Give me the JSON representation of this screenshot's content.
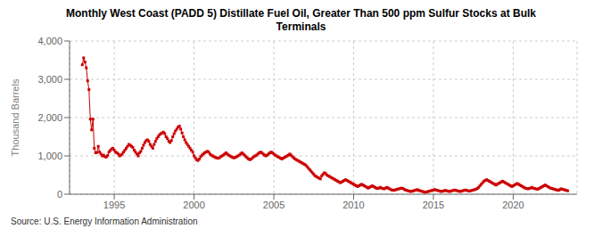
{
  "chart_data": {
    "type": "line",
    "title": "Monthly West Coast (PADD 5) Distillate Fuel Oil, Greater Than 500 ppm Sulfur Stocks at Bulk\nTerminals",
    "y_label": "Thousand Barrels",
    "annotations": [
      "Source: U.S. Energy Information Administration"
    ],
    "color": "#cc0000",
    "marker": "square",
    "grid": true,
    "xlim": [
      1992.2,
      2024.0
    ],
    "xticks": [
      1995,
      2000,
      2005,
      2010,
      2015,
      2020
    ],
    "ylim": [
      0,
      4000
    ],
    "yticks": [
      0,
      {
        "value": 1000,
        "label": "1,000"
      },
      {
        "value": 2000,
        "label": "2,000"
      },
      {
        "value": 3000,
        "label": "3,000"
      },
      {
        "value": 4000,
        "label": "4,000"
      }
    ],
    "x": [
      1993.0,
      1993.083,
      1993.167,
      1993.25,
      1993.333,
      1993.417,
      1993.5,
      1993.583,
      1993.667,
      1993.75,
      1993.833,
      1993.917,
      1994.0,
      1994.083,
      1994.167,
      1994.25,
      1994.333,
      1994.417,
      1994.5,
      1994.583,
      1994.667,
      1994.75,
      1994.833,
      1994.917,
      1995.0,
      1995.083,
      1995.167,
      1995.25,
      1995.333,
      1995.417,
      1995.5,
      1995.583,
      1995.667,
      1995.75,
      1995.833,
      1995.917,
      1996.0,
      1996.083,
      1996.167,
      1996.25,
      1996.333,
      1996.417,
      1996.5,
      1996.583,
      1996.667,
      1996.75,
      1996.833,
      1996.917,
      1997.0,
      1997.083,
      1997.167,
      1997.25,
      1997.333,
      1997.417,
      1997.5,
      1997.583,
      1997.667,
      1997.75,
      1997.833,
      1997.917,
      1998.0,
      1998.083,
      1998.167,
      1998.25,
      1998.333,
      1998.417,
      1998.5,
      1998.583,
      1998.667,
      1998.75,
      1998.833,
      1998.917,
      1999.0,
      1999.083,
      1999.167,
      1999.25,
      1999.333,
      1999.417,
      1999.5,
      1999.583,
      1999.667,
      1999.75,
      1999.833,
      1999.917,
      2000.0,
      2000.083,
      2000.167,
      2000.25,
      2000.333,
      2000.417,
      2000.5,
      2000.583,
      2000.667,
      2000.75,
      2000.833,
      2000.917,
      2001.0,
      2001.083,
      2001.167,
      2001.25,
      2001.333,
      2001.417,
      2001.5,
      2001.583,
      2001.667,
      2001.75,
      2001.833,
      2001.917,
      2002.0,
      2002.083,
      2002.167,
      2002.25,
      2002.333,
      2002.417,
      2002.5,
      2002.583,
      2002.667,
      2002.75,
      2002.833,
      2002.917,
      2003.0,
      2003.083,
      2003.167,
      2003.25,
      2003.333,
      2003.417,
      2003.5,
      2003.583,
      2003.667,
      2003.75,
      2003.833,
      2003.917,
      2004.0,
      2004.083,
      2004.167,
      2004.25,
      2004.333,
      2004.417,
      2004.5,
      2004.583,
      2004.667,
      2004.75,
      2004.833,
      2004.917,
      2005.0,
      2005.083,
      2005.167,
      2005.25,
      2005.333,
      2005.417,
      2005.5,
      2005.583,
      2005.667,
      2005.75,
      2005.833,
      2005.917,
      2006.0,
      2006.083,
      2006.167,
      2006.25,
      2006.333,
      2006.417,
      2006.5,
      2006.583,
      2006.667,
      2006.75,
      2006.833,
      2006.917,
      2007.0,
      2007.083,
      2007.167,
      2007.25,
      2007.333,
      2007.417,
      2007.5,
      2007.583,
      2007.667,
      2007.75,
      2007.833,
      2007.917,
      2008.0,
      2008.083,
      2008.167,
      2008.25,
      2008.333,
      2008.417,
      2008.5,
      2008.583,
      2008.667,
      2008.75,
      2008.833,
      2008.917,
      2009.0,
      2009.083,
      2009.167,
      2009.25,
      2009.333,
      2009.417,
      2009.5,
      2009.583,
      2009.667,
      2009.75,
      2009.833,
      2009.917,
      2010.0,
      2010.083,
      2010.167,
      2010.25,
      2010.333,
      2010.417,
      2010.5,
      2010.583,
      2010.667,
      2010.75,
      2010.833,
      2010.917,
      2011.0,
      2011.083,
      2011.167,
      2011.25,
      2011.333,
      2011.417,
      2011.5,
      2011.583,
      2011.667,
      2011.75,
      2011.833,
      2011.917,
      2012.0,
      2012.083,
      2012.167,
      2012.25,
      2012.333,
      2012.417,
      2012.5,
      2012.583,
      2012.667,
      2012.75,
      2012.833,
      2012.917,
      2013.0,
      2013.083,
      2013.167,
      2013.25,
      2013.333,
      2013.417,
      2013.5,
      2013.583,
      2013.667,
      2013.75,
      2013.833,
      2013.917,
      2014.0,
      2014.083,
      2014.167,
      2014.25,
      2014.333,
      2014.417,
      2014.5,
      2014.583,
      2014.667,
      2014.75,
      2014.833,
      2014.917,
      2015.0,
      2015.083,
      2015.167,
      2015.25,
      2015.333,
      2015.417,
      2015.5,
      2015.583,
      2015.667,
      2015.75,
      2015.833,
      2015.917,
      2016.0,
      2016.083,
      2016.167,
      2016.25,
      2016.333,
      2016.417,
      2016.5,
      2016.583,
      2016.667,
      2016.75,
      2016.833,
      2016.917,
      2017.0,
      2017.083,
      2017.167,
      2017.25,
      2017.333,
      2017.417,
      2017.5,
      2017.583,
      2017.667,
      2017.75,
      2017.833,
      2017.917,
      2018.0,
      2018.083,
      2018.167,
      2018.25,
      2018.333,
      2018.417,
      2018.5,
      2018.583,
      2018.667,
      2018.75,
      2018.833,
      2018.917,
      2019.0,
      2019.083,
      2019.167,
      2019.25,
      2019.333,
      2019.417,
      2019.5,
      2019.583,
      2019.667,
      2019.75,
      2019.833,
      2019.917,
      2020.0,
      2020.083,
      2020.167,
      2020.25,
      2020.333,
      2020.417,
      2020.5,
      2020.583,
      2020.667,
      2020.75,
      2020.833,
      2020.917,
      2021.0,
      2021.083,
      2021.167,
      2021.25,
      2021.333,
      2021.417,
      2021.5,
      2021.583,
      2021.667,
      2021.75,
      2021.833,
      2021.917,
      2022.0,
      2022.083,
      2022.167,
      2022.25,
      2022.333,
      2022.417,
      2022.5,
      2022.583,
      2022.667,
      2022.75,
      2022.833,
      2022.917,
      2023.0,
      2023.083,
      2023.167,
      2023.25,
      2023.333,
      2023.417
    ],
    "values": [
      3380,
      3560,
      3450,
      3300,
      2960,
      2730,
      1960,
      1680,
      1960,
      1200,
      1080,
      1090,
      1250,
      1100,
      1050,
      1000,
      1020,
      980,
      970,
      1010,
      1100,
      1140,
      1180,
      1200,
      1150,
      1100,
      1080,
      1050,
      1000,
      1020,
      1050,
      1100,
      1150,
      1200,
      1250,
      1300,
      1280,
      1250,
      1220,
      1150,
      1100,
      1050,
      1000,
      1080,
      1120,
      1200,
      1280,
      1350,
      1400,
      1420,
      1380,
      1300,
      1250,
      1200,
      1300,
      1380,
      1450,
      1500,
      1550,
      1580,
      1600,
      1620,
      1580,
      1500,
      1450,
      1380,
      1350,
      1400,
      1500,
      1580,
      1650,
      1700,
      1750,
      1780,
      1700,
      1600,
      1500,
      1420,
      1350,
      1300,
      1250,
      1200,
      1150,
      1100,
      1000,
      950,
      900,
      880,
      920,
      980,
      1020,
      1050,
      1080,
      1100,
      1120,
      1100,
      1050,
      1020,
      1000,
      980,
      960,
      950,
      940,
      950,
      980,
      1000,
      1020,
      1050,
      1080,
      1050,
      1020,
      1000,
      980,
      960,
      950,
      960,
      980,
      1000,
      1020,
      1050,
      1080,
      1050,
      1020,
      980,
      950,
      920,
      900,
      920,
      950,
      980,
      1000,
      1020,
      1050,
      1080,
      1100,
      1080,
      1050,
      1020,
      1000,
      1020,
      1050,
      1080,
      1100,
      1080,
      1050,
      1020,
      1000,
      980,
      960,
      940,
      920,
      940,
      960,
      980,
      1000,
      1020,
      1050,
      1020,
      980,
      950,
      920,
      900,
      880,
      860,
      840,
      820,
      800,
      780,
      760,
      720,
      680,
      640,
      600,
      560,
      520,
      480,
      460,
      440,
      420,
      400,
      480,
      520,
      560,
      540,
      500,
      480,
      460,
      440,
      420,
      400,
      380,
      360,
      340,
      320,
      300,
      320,
      340,
      360,
      380,
      360,
      340,
      320,
      300,
      280,
      260,
      240,
      220,
      200,
      220,
      240,
      260,
      240,
      220,
      200,
      180,
      160,
      180,
      200,
      220,
      200,
      180,
      160,
      150,
      160,
      180,
      160,
      150,
      140,
      160,
      180,
      160,
      140,
      120,
      110,
      100,
      110,
      120,
      130,
      140,
      150,
      160,
      150,
      130,
      110,
      100,
      90,
      80,
      70,
      80,
      90,
      100,
      110,
      120,
      100,
      90,
      80,
      70,
      60,
      50,
      60,
      70,
      80,
      90,
      100,
      110,
      120,
      110,
      100,
      90,
      80,
      70,
      80,
      90,
      100,
      90,
      80,
      70,
      80,
      90,
      100,
      110,
      100,
      90,
      80,
      70,
      80,
      90,
      100,
      110,
      100,
      90,
      80,
      90,
      100,
      110,
      120,
      130,
      150,
      180,
      220,
      260,
      300,
      340,
      360,
      380,
      360,
      340,
      320,
      300,
      280,
      260,
      240,
      260,
      280,
      300,
      320,
      340,
      320,
      300,
      280,
      260,
      240,
      220,
      200,
      220,
      240,
      260,
      280,
      260,
      240,
      220,
      200,
      180,
      160,
      150,
      140,
      150,
      160,
      180,
      160,
      150,
      140,
      130,
      140,
      160,
      180,
      200,
      220,
      240,
      220,
      200,
      180,
      160,
      150,
      140,
      130,
      120,
      110,
      100,
      120,
      140,
      130,
      120,
      110,
      100,
      90
    ]
  }
}
